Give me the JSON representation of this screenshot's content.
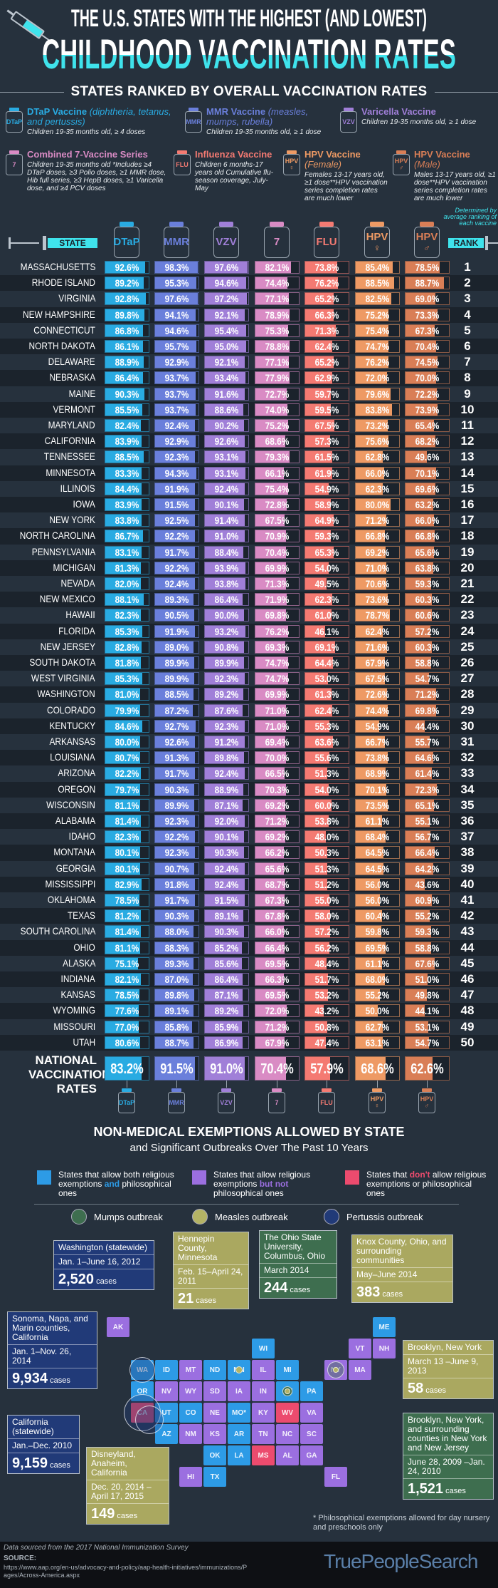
{
  "header": {
    "title_line1": "THE U.S. STATES WITH THE HIGHEST (AND LOWEST)",
    "title_line2": "CHILDHOOD VACCINATION RATES",
    "section_title": "STATES RANKED BY OVERALL VACCINATION RATES"
  },
  "legend": [
    {
      "icon": "DTaP",
      "name": "DTaP Vaccine",
      "extra": "(diphtheria, tetanus, and pertussis)",
      "desc": "Children 19-35 months old, ≥ 4 doses",
      "color": "#29abe2"
    },
    {
      "icon": "MMR",
      "name": "MMR Vaccine",
      "extra": "(measles, mumps, rubella)",
      "desc": "Children 19-35 months old, ≥ 1 dose",
      "color": "#6a7fdb"
    },
    {
      "icon": "VZV",
      "name": "Varicella Vaccine",
      "extra": "",
      "desc": "Children 19-35 months old, ≥ 1 dose",
      "color": "#a07fd8"
    },
    {
      "icon": "7",
      "name": "Combined 7-Vaccine Series",
      "extra": "",
      "desc": "Children 19-35 months old *Includes ≥4 DTaP doses, ≥3 Polio doses, ≥1 MMR dose, Hib full series, ≥3 HepB doses, ≥1 Varicella dose, and ≥4 PCV doses",
      "color": "#d98bc4"
    },
    {
      "icon": "FLU",
      "name": "Influenza Vaccine",
      "extra": "",
      "desc": "Children 6 months-17 years old Cumulative flu-season coverage, July-May",
      "color": "#f47a72"
    },
    {
      "icon": "HPV ♀",
      "name": "HPV Vaccine",
      "extra": "(Female)",
      "desc": "Females 13-17 years old, ≥1 dose**HPV vaccination series completion rates are much lower",
      "color": "#ee9a64"
    },
    {
      "icon": "HPV ♂",
      "name": "HPV Vaccine",
      "extra": "(Male)",
      "desc": "Males 13-17 years old, ≥1 dose**HPV vaccination series completion rates are much lower",
      "color": "#d97e56"
    }
  ],
  "table": {
    "state_label": "STATE",
    "rank_label": "RANK",
    "rank_note": "Determined by average ranking of each vaccine",
    "columns": [
      {
        "label": "DTaP",
        "sub": "",
        "color": "#29abe2"
      },
      {
        "label": "MMR",
        "sub": "",
        "color": "#6a7fdb"
      },
      {
        "label": "VZV",
        "sub": "",
        "color": "#a07fd8"
      },
      {
        "label": "7",
        "sub": "",
        "color": "#d98bc4"
      },
      {
        "label": "FLU",
        "sub": "",
        "color": "#f47a72"
      },
      {
        "label": "HPV",
        "sub": "♀",
        "color": "#ee9a64"
      },
      {
        "label": "HPV",
        "sub": "♂",
        "color": "#d97e56"
      }
    ],
    "rows": [
      [
        "MASSACHUSETTS",
        92.6,
        98.3,
        97.6,
        82.1,
        73.8,
        85.4,
        78.5,
        1
      ],
      [
        "RHODE ISLAND",
        89.2,
        95.3,
        94.6,
        74.4,
        76.2,
        88.5,
        88.7,
        2
      ],
      [
        "VIRGINIA",
        92.8,
        97.6,
        97.2,
        77.1,
        65.2,
        82.5,
        69.0,
        3
      ],
      [
        "NEW HAMPSHIRE",
        89.8,
        94.1,
        92.1,
        78.9,
        66.3,
        75.2,
        73.3,
        4
      ],
      [
        "CONNECTICUT",
        86.8,
        94.6,
        95.4,
        75.3,
        71.3,
        75.4,
        67.3,
        5
      ],
      [
        "NORTH DAKOTA",
        86.1,
        95.7,
        95.0,
        78.8,
        62.4,
        74.7,
        70.4,
        6
      ],
      [
        "DELAWARE",
        88.9,
        92.9,
        92.1,
        77.1,
        65.2,
        76.2,
        74.5,
        7
      ],
      [
        "NEBRASKA",
        86.4,
        93.7,
        93.4,
        77.9,
        62.9,
        72.0,
        70.0,
        8
      ],
      [
        "MAINE",
        90.3,
        93.7,
        91.6,
        72.7,
        59.7,
        79.6,
        72.2,
        9
      ],
      [
        "VERMONT",
        85.5,
        93.7,
        88.6,
        74.0,
        59.5,
        83.8,
        73.9,
        10
      ],
      [
        "MARYLAND",
        82.4,
        92.4,
        90.2,
        75.2,
        67.5,
        73.2,
        65.4,
        11
      ],
      [
        "CALIFORNIA",
        83.9,
        92.9,
        92.6,
        68.6,
        57.3,
        75.6,
        68.2,
        12
      ],
      [
        "TENNESSEE",
        88.5,
        92.3,
        93.1,
        79.3,
        61.5,
        62.8,
        49.6,
        13
      ],
      [
        "MINNESOTA",
        83.3,
        94.3,
        93.1,
        66.1,
        61.9,
        66.0,
        70.1,
        14
      ],
      [
        "ILLINOIS",
        84.4,
        91.9,
        92.4,
        75.4,
        54.9,
        62.3,
        69.6,
        15
      ],
      [
        "IOWA",
        83.9,
        91.5,
        90.1,
        72.8,
        58.9,
        80.0,
        63.2,
        16
      ],
      [
        "NEW YORK",
        83.8,
        92.5,
        91.4,
        67.5,
        64.9,
        71.2,
        66.0,
        17
      ],
      [
        "NORTH CAROLINA",
        86.7,
        92.2,
        91.0,
        70.9,
        59.3,
        66.8,
        66.8,
        18
      ],
      [
        "PENNSYLVANIA",
        83.1,
        91.7,
        88.4,
        70.4,
        65.3,
        69.2,
        65.6,
        19
      ],
      [
        "MICHIGAN",
        81.3,
        92.2,
        93.9,
        69.9,
        54.0,
        71.0,
        63.8,
        20
      ],
      [
        "NEVADA",
        82.0,
        92.4,
        93.8,
        71.3,
        49.5,
        70.6,
        59.3,
        21
      ],
      [
        "NEW MEXICO",
        88.1,
        89.3,
        86.4,
        71.9,
        62.3,
        73.6,
        60.3,
        22
      ],
      [
        "HAWAII",
        82.3,
        90.5,
        90.0,
        69.8,
        61.0,
        78.7,
        60.6,
        23
      ],
      [
        "FLORIDA",
        85.3,
        91.9,
        93.2,
        76.2,
        46.1,
        62.4,
        57.2,
        24
      ],
      [
        "NEW JERSEY",
        82.8,
        89.0,
        90.8,
        69.3,
        69.1,
        71.6,
        60.3,
        25
      ],
      [
        "SOUTH DAKOTA",
        81.8,
        89.9,
        89.9,
        74.7,
        64.4,
        67.9,
        58.8,
        26
      ],
      [
        "WEST VIRGINIA",
        85.3,
        89.9,
        92.3,
        74.7,
        53.0,
        67.5,
        54.7,
        27
      ],
      [
        "WASHINGTON",
        81.0,
        88.5,
        89.2,
        69.9,
        61.3,
        72.6,
        71.2,
        28
      ],
      [
        "COLORADO",
        79.9,
        87.2,
        87.6,
        71.0,
        62.4,
        74.4,
        69.8,
        29
      ],
      [
        "KENTUCKY",
        84.6,
        92.7,
        92.3,
        71.0,
        55.3,
        54.9,
        44.4,
        30
      ],
      [
        "ARKANSAS",
        80.0,
        92.6,
        91.2,
        69.4,
        63.6,
        66.7,
        55.7,
        31
      ],
      [
        "LOUISIANA",
        80.7,
        91.3,
        89.8,
        70.0,
        55.6,
        73.8,
        64.6,
        32
      ],
      [
        "ARIZONA",
        82.2,
        91.7,
        92.4,
        66.5,
        51.3,
        68.9,
        61.4,
        33
      ],
      [
        "OREGON",
        79.7,
        90.3,
        88.9,
        70.3,
        54.0,
        70.1,
        72.3,
        34
      ],
      [
        "WISCONSIN",
        81.1,
        89.9,
        87.1,
        69.2,
        60.0,
        73.5,
        65.1,
        35
      ],
      [
        "ALABAMA",
        81.4,
        92.3,
        92.0,
        71.2,
        53.8,
        61.1,
        55.1,
        36
      ],
      [
        "IDAHO",
        82.3,
        92.2,
        90.1,
        69.2,
        48.0,
        68.4,
        56.7,
        37
      ],
      [
        "MONTANA",
        80.1,
        92.3,
        90.3,
        66.2,
        50.3,
        64.5,
        66.4,
        38
      ],
      [
        "GEORGIA",
        80.1,
        90.7,
        92.4,
        65.6,
        51.3,
        64.5,
        64.2,
        39
      ],
      [
        "MISSISSIPPI",
        82.9,
        91.8,
        92.4,
        68.7,
        51.2,
        56.0,
        43.6,
        40
      ],
      [
        "OKLAHOMA",
        78.5,
        91.7,
        91.5,
        67.3,
        55.0,
        56.0,
        60.9,
        41
      ],
      [
        "TEXAS",
        81.2,
        90.3,
        89.1,
        67.8,
        58.0,
        60.4,
        55.2,
        42
      ],
      [
        "SOUTH CAROLINA",
        81.4,
        88.0,
        90.3,
        66.0,
        57.2,
        59.8,
        59.3,
        43
      ],
      [
        "OHIO",
        81.1,
        88.3,
        85.2,
        66.4,
        56.2,
        69.5,
        58.8,
        44
      ],
      [
        "ALASKA",
        75.1,
        89.3,
        85.6,
        69.5,
        48.4,
        61.1,
        67.6,
        45
      ],
      [
        "INDIANA",
        82.1,
        87.0,
        86.4,
        66.3,
        51.7,
        68.0,
        51.0,
        46
      ],
      [
        "KANSAS",
        78.5,
        89.8,
        87.1,
        69.5,
        53.2,
        55.2,
        49.8,
        47
      ],
      [
        "WYOMING",
        77.6,
        89.1,
        89.2,
        72.0,
        43.2,
        50.0,
        44.1,
        48
      ],
      [
        "MISSOURI",
        77.0,
        85.8,
        85.9,
        71.2,
        50.8,
        62.7,
        53.1,
        49
      ],
      [
        "UTAH",
        80.6,
        88.7,
        86.9,
        67.9,
        47.4,
        63.1,
        54.7,
        50
      ]
    ],
    "national_label": "NATIONAL VACCINATION RATES",
    "national": [
      83.2,
      91.5,
      91.0,
      70.4,
      57.9,
      68.6,
      62.6
    ]
  },
  "exemptions": {
    "title": "NON-MEDICAL EXEMPTIONS ALLOWED BY STATE",
    "subtitle": "and Significant Outbreaks Over The Past 10 Years",
    "legend": [
      {
        "pre": "States that allow both religious exemptions ",
        "hl": "and",
        "post": " philosophical ones",
        "color": "#2d9be6"
      },
      {
        "pre": "States that allow religious exemptions ",
        "hl": "but not",
        "post": " philosophical ones",
        "color": "#9b6fe0"
      },
      {
        "pre": "States that ",
        "hl": "don't",
        "post": " allow religious exemptions or philosophical ones",
        "color": "#ec4b6e"
      }
    ],
    "outbreak_types": [
      {
        "label": "Mumps outbreak",
        "color": "#3e6e4f"
      },
      {
        "label": "Measles outbreak",
        "color": "#b4b365"
      },
      {
        "label": "Pertussis outbreak",
        "color": "#213a78"
      }
    ],
    "outbreaks": [
      {
        "place": "Washington (statewide)",
        "dates": "Jan. 1–June 16, 2012",
        "cases": "2,520",
        "type": "pertussis"
      },
      {
        "place": "Hennepin County, Minnesota",
        "dates": "Feb. 15–April 24, 2011",
        "cases": "21",
        "type": "measles"
      },
      {
        "place": "The Ohio State University, Columbus, Ohio",
        "dates": "March 2014",
        "cases": "244",
        "type": "mumps"
      },
      {
        "place": "Knox County, Ohio, and surrounding communities",
        "dates": "May–June 2014",
        "cases": "383",
        "type": "measles"
      },
      {
        "place": "Sonoma, Napa, and Marin counties, California",
        "dates": "Jan. 1–Nov. 26, 2014",
        "cases": "9,934",
        "type": "pertussis"
      },
      {
        "place": "California (statewide)",
        "dates": "Jan.–Dec. 2010",
        "cases": "9,159",
        "type": "pertussis"
      },
      {
        "place": "Disneyland, Anaheim, California",
        "dates": "Dec. 20, 2014 –April 17, 2015",
        "cases": "149",
        "type": "measles"
      },
      {
        "place": "Brooklyn, New York",
        "dates": "March 13 –June 9, 2013",
        "cases": "58",
        "type": "measles"
      },
      {
        "place": "Brooklyn, New York, and surrounding counties in New York and New Jersey",
        "dates": "June 28, 2009 –Jan. 24, 2010",
        "cases": "1,521",
        "type": "mumps"
      }
    ],
    "cases_word": "cases",
    "states": {
      "both": [
        "WA",
        "OR",
        "ID",
        "UT",
        "CO",
        "AZ",
        "ND",
        "MN",
        "WI",
        "MI",
        "OH",
        "PA",
        "ME",
        "TX",
        "OK",
        "AR",
        "LA",
        "MO*"
      ],
      "religious": [
        "MT",
        "WY",
        "SD",
        "NE",
        "KS",
        "NM",
        "NV",
        "IA",
        "IL",
        "IN",
        "KY",
        "TN",
        "AL",
        "GA",
        "SC",
        "NC",
        "VA",
        "NY",
        "VT",
        "NH",
        "MA",
        "FL",
        "AK",
        "HI"
      ],
      "none": [
        "CA",
        "MS",
        "WV"
      ]
    },
    "footnote": "* Philosophical exemptions allowed for day nursery and preschools only"
  },
  "footer": {
    "data_note": "Data sourced from the 2017 National Immunization Survey",
    "source_label": "SOURCE:",
    "source_url": "https://www.aap.org/en-us/advocacy-and-policy/aap-health-initiatives/immunizations/Pages/Across-America.aspx",
    "brand": "TruePeopleSearch"
  }
}
